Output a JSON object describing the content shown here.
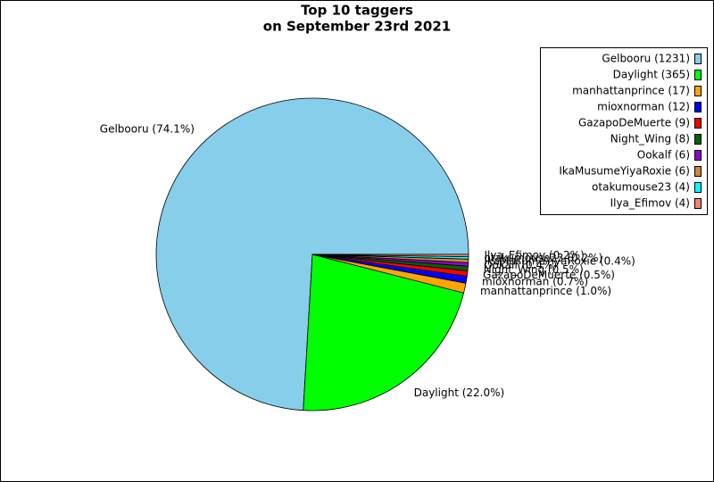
{
  "chart_data": {
    "type": "pie",
    "title": [
      "Top 10 taggers",
      "on September 23rd 2021"
    ],
    "categories": [
      "Gelbooru",
      "Daylight",
      "manhattanprince",
      "mioxnorman",
      "GazapoDeMuerte",
      "Night_Wing",
      "Ookalf",
      "IkaMusumeYiyaRoxie",
      "otakumouse23",
      "Ilya_Efimov"
    ],
    "values": [
      1231,
      365,
      17,
      12,
      9,
      8,
      6,
      6,
      4,
      4
    ],
    "value_labels": [
      "Gelbooru (74.1%)",
      "Daylight (22.0%)",
      "manhattanprince (1.0%)",
      "mioxnorman (0.7%)",
      "GazapoDeMuerte (0.5%)",
      "Night_Wing (0.5%)",
      "Ookalf (0.4%)",
      "IkaMusumeYiyaRoxie (0.4%)",
      "otakumouse23 (0.2%)",
      "Ilya_Efimov (0.2%)"
    ],
    "legend_labels": [
      "Gelbooru (1231)",
      "Daylight (365)",
      "manhattanprince (17)",
      "mioxnorman (12)",
      "GazapoDeMuerte (9)",
      "Night_Wing (8)",
      "Ookalf (6)",
      "IkaMusumeYiyaRoxie (6)",
      "otakumouse23 (4)",
      "Ilya_Efimov (4)"
    ],
    "colors": [
      "#87ceeb",
      "#00ff00",
      "#ffa500",
      "#0000ff",
      "#ff0000",
      "#006400",
      "#9400d3",
      "#cd853f",
      "#00ffff",
      "#fa8072"
    ],
    "legend": "upper right"
  }
}
